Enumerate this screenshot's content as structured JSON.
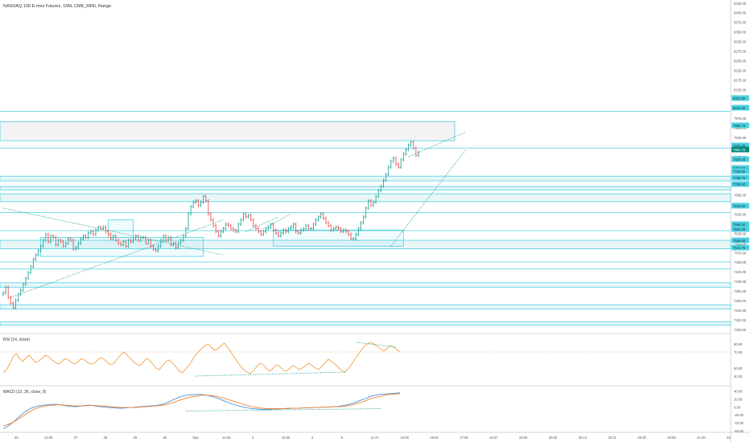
{
  "header": {
    "title": "NASDAQ 100 E-mini Futures, 10M, CME_MINI, Range"
  },
  "rsi_panel": {
    "label": "RSI (14, close)"
  },
  "macd_panel": {
    "label": "MACD (12, 26, close, 9)"
  },
  "colors": {
    "up": "#26a69a",
    "down": "#ef5350",
    "zone_line": "#4dd0e1",
    "zone_fill": "#e9f6f8",
    "grey_zone": "#f3f3f3",
    "trend": "#26a69a",
    "rsi": "#f0a24a",
    "macd": "#4a90d9",
    "signal": "#f08030",
    "tag_bg": "#4dd0e1",
    "tag_dark": "#00897b"
  },
  "price_axis": {
    "ticks": [
      "8425.00",
      "8400.00",
      "8375.00",
      "8350.00",
      "8325.00",
      "8275.00",
      "8250.00",
      "8225.00",
      "8175.00",
      "8150.00",
      "8125.00",
      "8100.00",
      "7975.00",
      "7950.00",
      "7925.00",
      "7895.00",
      "7875.00",
      "7813.00",
      "7742.00",
      "7705.00",
      "7665.00",
      "7623.00",
      "7600.00",
      "7581.00",
      "7536.00",
      "7512.00",
      "7475.00",
      "7450.00",
      "7425.00",
      "7400.00",
      "7381.00",
      "7363.00",
      "7344.00",
      "7320.00",
      "7300.00"
    ],
    "tags": [
      {
        "text": "8051.50",
        "dark": false
      },
      {
        "text": "8015.50",
        "dark": false
      },
      {
        "text": "7950.75",
        "dark": false
      },
      {
        "text": "7925.00",
        "dark": false
      },
      {
        "text": "7861.75",
        "dark": true
      },
      {
        "text": "7829.25",
        "dark": false
      },
      {
        "text": "7793.00",
        "dark": false
      },
      {
        "text": "7782.50",
        "dark": false
      },
      {
        "text": "7768.75",
        "dark": false
      },
      {
        "text": "7739.50",
        "dark": false
      },
      {
        "text": "7643.00",
        "dark": false
      },
      {
        "text": "7595.00",
        "dark": false
      },
      {
        "text": "7581.00",
        "dark": false
      },
      {
        "text": "7536.50",
        "dark": false
      },
      {
        "text": "7512.75",
        "dark": false
      }
    ]
  },
  "rsi_axis": {
    "ticks": [
      "80.00",
      "70.00",
      "50.00",
      "40.00"
    ]
  },
  "macd_axis": {
    "ticks": [
      "40.00",
      "20.00",
      "0.00",
      "-20.00",
      "-40.00",
      "-60.00"
    ]
  },
  "time_axis": {
    "labels": [
      "26",
      "12:00",
      "27",
      "28",
      "29",
      "30",
      "Sep",
      "13:36",
      "3",
      "15:25",
      "4",
      "5",
      "11:37",
      "15:00",
      "16:53",
      "17:30",
      "18:37",
      "19:50",
      "20:03",
      "20:13",
      "20:31",
      "20:40",
      "20:50",
      "21:00",
      "22"
    ]
  },
  "chart_data": [
    {
      "type": "ohlc",
      "title": "NASDAQ 100 E-mini Futures, 10M, CME_MINI, Range",
      "timeframe": "10M",
      "y_unit": "index points",
      "ylim": [
        7300,
        8425
      ],
      "bars": [
        7430,
        7450,
        7415,
        7395,
        7380,
        7405,
        7425,
        7440,
        7460,
        7480,
        7500,
        7520,
        7545,
        7560,
        7575,
        7590,
        7610,
        7630,
        7605,
        7625,
        7620,
        7595,
        7610,
        7605,
        7590,
        7600,
        7615,
        7610,
        7580,
        7585,
        7600,
        7615,
        7625,
        7620,
        7635,
        7640,
        7630,
        7645,
        7655,
        7650,
        7655,
        7640,
        7630,
        7615,
        7625,
        7610,
        7600,
        7595,
        7605,
        7590,
        7610,
        7605,
        7615,
        7625,
        7610,
        7620,
        7620,
        7600,
        7610,
        7590,
        7580,
        7575,
        7590,
        7610,
        7625,
        7610,
        7620,
        7595,
        7600,
        7585,
        7600,
        7610,
        7625,
        7650,
        7700,
        7725,
        7740,
        7745,
        7730,
        7740,
        7760,
        7745,
        7700,
        7680,
        7660,
        7640,
        7625,
        7640,
        7650,
        7665,
        7660,
        7650,
        7645,
        7640,
        7665,
        7680,
        7700,
        7690,
        7695,
        7680,
        7660,
        7650,
        7640,
        7630,
        7640,
        7650,
        7655,
        7665,
        7645,
        7635,
        7625,
        7635,
        7645,
        7640,
        7650,
        7655,
        7665,
        7640,
        7635,
        7645,
        7650,
        7660,
        7650,
        7650,
        7665,
        7680,
        7690,
        7700,
        7685,
        7670,
        7660,
        7645,
        7650,
        7655,
        7650,
        7640,
        7645,
        7640,
        7630,
        7615,
        7615,
        7630,
        7650,
        7670,
        7690,
        7720,
        7745,
        7730,
        7740,
        7760,
        7780,
        7795,
        7815,
        7835,
        7860,
        7880,
        7890,
        7870,
        7860,
        7885,
        7905,
        7920,
        7935,
        7945,
        7925,
        7900,
        7910
      ],
      "zones": [
        {
          "from": 8025,
          "to": 8050,
          "kind": "line"
        },
        {
          "from": 7950,
          "to": 8015,
          "kind": "grey",
          "end": "mid"
        },
        {
          "from": 7925,
          "to": 7925,
          "kind": "line"
        },
        {
          "from": 7813,
          "to": 7829,
          "kind": "fill"
        },
        {
          "from": 7782,
          "to": 7793,
          "kind": "fill"
        },
        {
          "from": 7742,
          "to": 7769,
          "kind": "fill"
        },
        {
          "from": 7705,
          "to": 7705,
          "kind": "line"
        },
        {
          "from": 7643,
          "to": 7643,
          "kind": "line"
        },
        {
          "from": 7581,
          "to": 7610,
          "kind": "fill"
        },
        {
          "from": 7536,
          "to": 7536,
          "kind": "line"
        },
        {
          "from": 7512,
          "to": 7512,
          "kind": "line"
        },
        {
          "from": 7450,
          "to": 7465,
          "kind": "fill"
        },
        {
          "from": 7375,
          "to": 7390,
          "kind": "fill"
        },
        {
          "from": 7320,
          "to": 7332,
          "kind": "fill"
        }
      ],
      "trendlines": [
        {
          "x1": 0,
          "y1": 7720,
          "x2": 88,
          "y2": 7560,
          "style": "dotted"
        },
        {
          "x1": 3,
          "y1": 7415,
          "x2": 88,
          "y2": 7680,
          "style": "dotted"
        },
        {
          "x1": 97,
          "y1": 7640,
          "x2": 110,
          "y2": 7690,
          "style": "dotted"
        },
        {
          "x1": 104,
          "y1": 7650,
          "x2": 115,
          "y2": 7700,
          "style": "dotted"
        },
        {
          "x1": 155,
          "y1": 7590,
          "x2": 185,
          "y2": 7920,
          "style": "dotted"
        },
        {
          "x1": 162,
          "y1": 7895,
          "x2": 185,
          "y2": 7980,
          "style": "dotted"
        }
      ],
      "boxes": [
        {
          "x1": 15,
          "x2": 80,
          "y1": 7555,
          "y2": 7620
        },
        {
          "x1": 42,
          "x2": 52,
          "y1": 7620,
          "y2": 7680
        },
        {
          "x1": 108,
          "x2": 160,
          "y1": 7590,
          "y2": 7645
        }
      ]
    },
    {
      "type": "line",
      "title": "RSI (14, close)",
      "ylim": [
        30,
        90
      ],
      "levels": [
        70
      ],
      "series": [
        {
          "values": [
            44,
            48,
            55,
            64,
            68,
            62,
            58,
            63,
            66,
            61,
            57,
            59,
            62,
            66,
            64,
            60,
            57,
            55,
            58,
            62,
            60,
            57,
            55,
            58,
            62,
            60,
            57,
            55,
            56,
            60,
            63,
            61,
            57,
            54,
            56,
            61,
            66,
            70,
            67,
            62,
            58,
            55,
            53,
            57,
            62,
            60,
            55,
            50,
            48,
            53,
            58,
            60,
            57,
            52,
            47,
            44,
            48,
            53,
            59,
            66,
            70,
            74,
            78,
            80,
            76,
            72,
            74,
            78,
            81,
            76,
            70,
            64,
            58,
            52,
            48,
            45,
            43,
            47,
            52,
            56,
            54,
            49,
            46,
            50,
            54,
            52,
            48,
            46,
            49,
            53,
            51,
            48,
            50,
            53,
            56,
            53,
            50,
            48,
            52,
            57,
            61,
            58,
            55,
            51,
            47,
            45,
            49,
            54,
            60,
            66,
            72,
            77,
            80,
            82,
            80,
            77,
            74,
            71,
            74,
            78,
            76,
            73,
            70
          ]
        }
      ],
      "trendlines": [
        {
          "x1": 95,
          "y1": 40,
          "x2": 170,
          "y2": 45,
          "style": "dotted"
        },
        {
          "x1": 175,
          "y1": 82,
          "x2": 195,
          "y2": 76,
          "style": "dotted"
        }
      ]
    },
    {
      "type": "line",
      "title": "MACD (12, 26, close, 9)",
      "ylim": [
        -60,
        50
      ],
      "series": [
        {
          "name": "MACD",
          "values": [
            -55,
            -48,
            -38,
            -26,
            -15,
            -6,
            0,
            3,
            5,
            6,
            7,
            6,
            4,
            2,
            1,
            2,
            4,
            5,
            3,
            1,
            0,
            -1,
            -2,
            -3,
            -2,
            -1,
            0,
            1,
            2,
            3,
            4,
            6,
            10,
            16,
            22,
            27,
            30,
            31,
            32,
            32,
            30,
            27,
            23,
            18,
            13,
            8,
            4,
            1,
            -2,
            -4,
            -5,
            -6,
            -6,
            -5,
            -5,
            -4,
            -4,
            -3,
            -3,
            -2,
            -2,
            -1,
            -1,
            0,
            0,
            1,
            2,
            4,
            7,
            11,
            16,
            21,
            26,
            30,
            32,
            33,
            34,
            35,
            36
          ]
        },
        {
          "name": "Signal",
          "values": [
            -48,
            -44,
            -38,
            -30,
            -22,
            -13,
            -6,
            -1,
            2,
            4,
            5,
            6,
            5,
            4,
            3,
            3,
            3,
            4,
            4,
            3,
            2,
            1,
            0,
            -1,
            -1,
            -1,
            -1,
            0,
            1,
            2,
            3,
            4,
            6,
            10,
            14,
            19,
            23,
            26,
            28,
            30,
            30,
            29,
            27,
            24,
            20,
            16,
            12,
            8,
            4,
            1,
            -1,
            -3,
            -4,
            -4,
            -4,
            -4,
            -3,
            -3,
            -3,
            -2,
            -2,
            -1,
            -1,
            0,
            0,
            1,
            1,
            2,
            4,
            7,
            11,
            15,
            20,
            24,
            27,
            30,
            32,
            33,
            34
          ]
        }
      ],
      "trendlines": [
        {
          "x1": 58,
          "y1": -10,
          "x2": 120,
          "y2": -4,
          "style": "dotted"
        }
      ]
    }
  ]
}
